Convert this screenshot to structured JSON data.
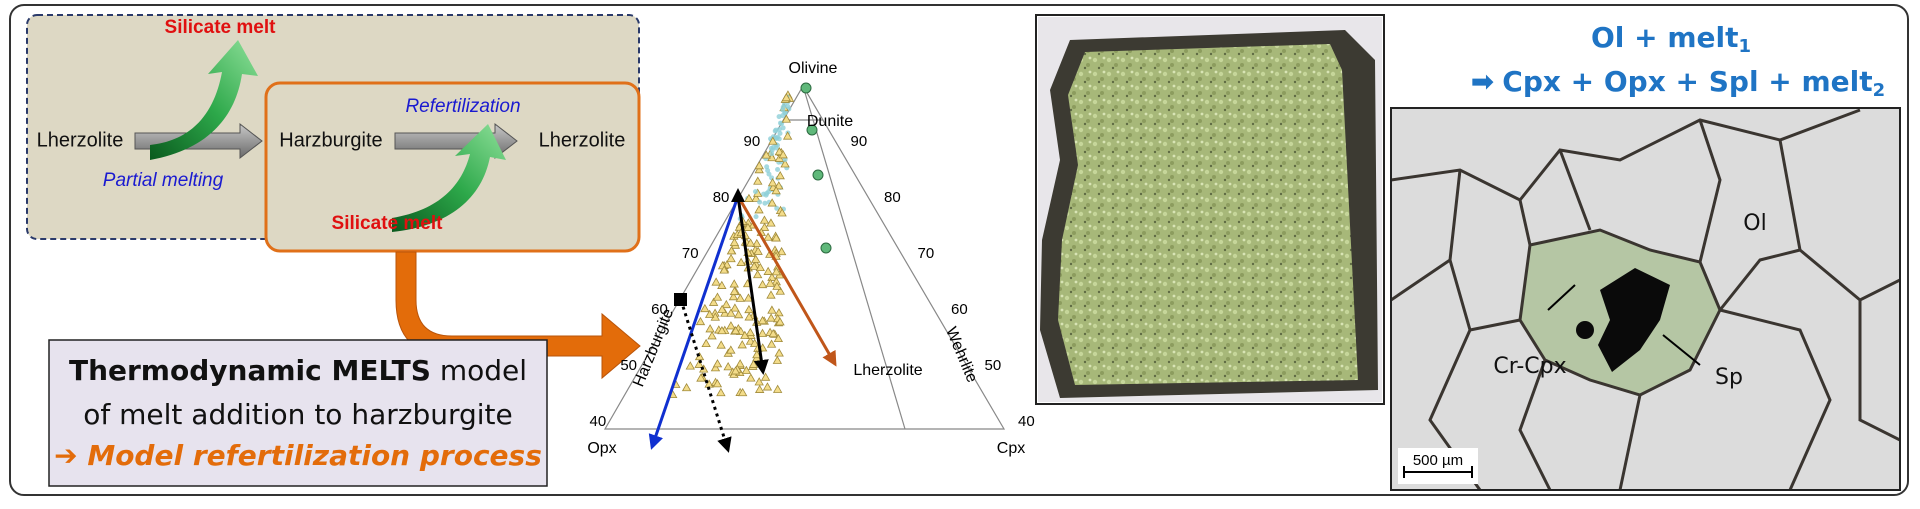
{
  "left_panel": {
    "silicate_melt_top": "Silicate melt",
    "lherzolite_start": "Lherzolite",
    "partial_melting": "Partial melting",
    "harzburgite": "Harzburgite",
    "refertilization": "Refertilization",
    "lherzolite_end": "Lherzolite",
    "silicate_melt_bottom": "Silicate melt"
  },
  "model_box": {
    "line1_bold": "Thermodynamic MELTS",
    "line1_rest": " model",
    "line2": "of melt addition to harzburgite",
    "line3": "➔ Model refertilization process"
  },
  "ternary": {
    "apex_top": "Olivine",
    "apex_left": "Opx",
    "apex_right": "Cpx",
    "field_dunite": "Dunite",
    "field_harzburgite": "Harzburgite",
    "field_lherzolite": "Lherzolite",
    "field_wehrlite": "Wehrlite",
    "left_ticks": [
      90,
      80,
      70,
      60,
      50,
      40
    ],
    "right_ticks": [
      90,
      80,
      70,
      60,
      50,
      40
    ]
  },
  "reaction": {
    "lhs": "Ol + melt",
    "lhs_sub": "1",
    "arrow": "➡",
    "rhs": "Cpx + Opx + Spl + melt",
    "rhs_sub": "2"
  },
  "micrograph": {
    "label_ol": "Ol",
    "label_cpx": "Cr-Cpx",
    "label_sp": "Sp",
    "scale_bar": "500 µm"
  }
}
